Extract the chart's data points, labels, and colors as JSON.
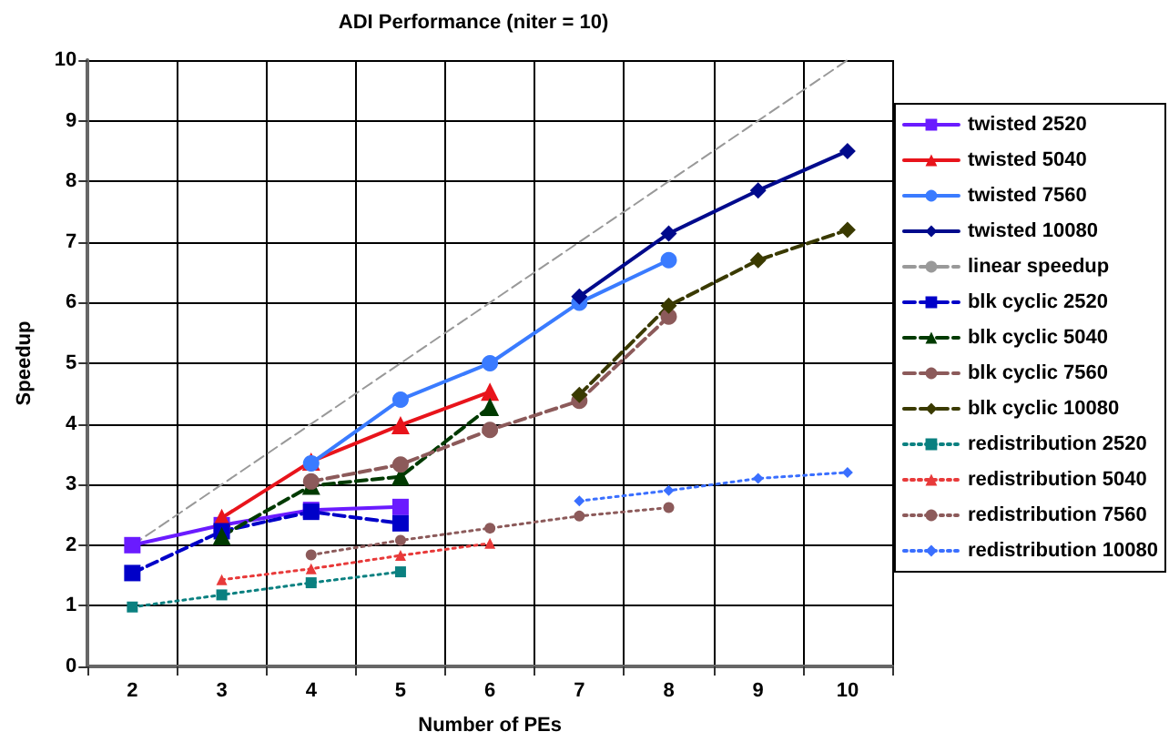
{
  "chart_data": {
    "type": "line",
    "title": "ADI Performance (niter = 10)",
    "xlabel": "Number of PEs",
    "ylabel": "Speedup",
    "categories": [
      "2",
      "3",
      "4",
      "5",
      "6",
      "7",
      "8",
      "9",
      "10"
    ],
    "ylim": [
      0,
      10
    ],
    "yticks": [
      0,
      1,
      2,
      3,
      4,
      5,
      6,
      7,
      8,
      9,
      10
    ],
    "grid": true,
    "legend": "right",
    "series": [
      {
        "name": "twisted 2520",
        "color": "#6a1bff",
        "marker": "square",
        "line_style": "solid",
        "values": [
          2.0,
          2.33,
          2.58,
          2.63,
          null,
          null,
          null,
          null,
          null
        ]
      },
      {
        "name": "twisted 5040",
        "color": "#e8141b",
        "marker": "triangle",
        "line_style": "solid",
        "values": [
          null,
          2.45,
          3.38,
          3.98,
          4.53,
          null,
          null,
          null,
          null
        ]
      },
      {
        "name": "twisted 7560",
        "color": "#3a7bff",
        "marker": "circle",
        "line_style": "solid",
        "values": [
          null,
          null,
          3.35,
          4.4,
          5.0,
          6.0,
          6.7,
          null,
          null
        ]
      },
      {
        "name": "twisted 10080",
        "color": "#000a8c",
        "marker": "diamond",
        "line_style": "solid",
        "values": [
          null,
          null,
          null,
          null,
          null,
          6.1,
          7.14,
          7.85,
          8.5
        ]
      },
      {
        "name": "linear speedup",
        "color": "#999999",
        "marker": "none",
        "line_style": "dashed",
        "values": [
          2,
          3,
          4,
          5,
          6,
          7,
          8,
          9,
          10
        ]
      },
      {
        "name": "blk cyclic 2520",
        "color": "#0000c8",
        "marker": "square",
        "line_style": "dashed",
        "values": [
          1.54,
          2.23,
          2.55,
          2.36,
          null,
          null,
          null,
          null,
          null
        ]
      },
      {
        "name": "blk cyclic 5040",
        "color": "#003a00",
        "marker": "triangle",
        "line_style": "dashed",
        "values": [
          null,
          2.15,
          2.98,
          3.13,
          4.28,
          null,
          null,
          null,
          null
        ]
      },
      {
        "name": "blk cyclic 7560",
        "color": "#8c5a5a",
        "marker": "circle",
        "line_style": "dashed",
        "values": [
          null,
          null,
          3.05,
          3.33,
          3.9,
          4.38,
          5.77,
          null,
          null
        ]
      },
      {
        "name": "blk cyclic 10080",
        "color": "#3a3a00",
        "marker": "diamond",
        "line_style": "dashed",
        "values": [
          null,
          null,
          null,
          null,
          null,
          4.48,
          5.95,
          6.7,
          7.2
        ]
      },
      {
        "name": "redistribution 2520",
        "color": "#0a8080",
        "marker": "square",
        "line_style": "dotted",
        "values": [
          0.98,
          1.18,
          1.38,
          1.56,
          null,
          null,
          null,
          null,
          null
        ]
      },
      {
        "name": "redistribution 5040",
        "color": "#e83a3a",
        "marker": "triangle",
        "line_style": "dotted",
        "values": [
          null,
          1.43,
          1.61,
          1.83,
          2.03,
          null,
          null,
          null,
          null
        ]
      },
      {
        "name": "redistribution 7560",
        "color": "#8c5a5a",
        "marker": "circle",
        "line_style": "dotted",
        "values": [
          null,
          null,
          1.84,
          2.08,
          2.28,
          2.48,
          2.62,
          null,
          null
        ]
      },
      {
        "name": "redistribution 10080",
        "color": "#3a6fff",
        "marker": "diamond",
        "line_style": "dotted",
        "values": [
          null,
          null,
          null,
          null,
          null,
          2.73,
          2.9,
          3.1,
          3.2
        ]
      }
    ]
  }
}
